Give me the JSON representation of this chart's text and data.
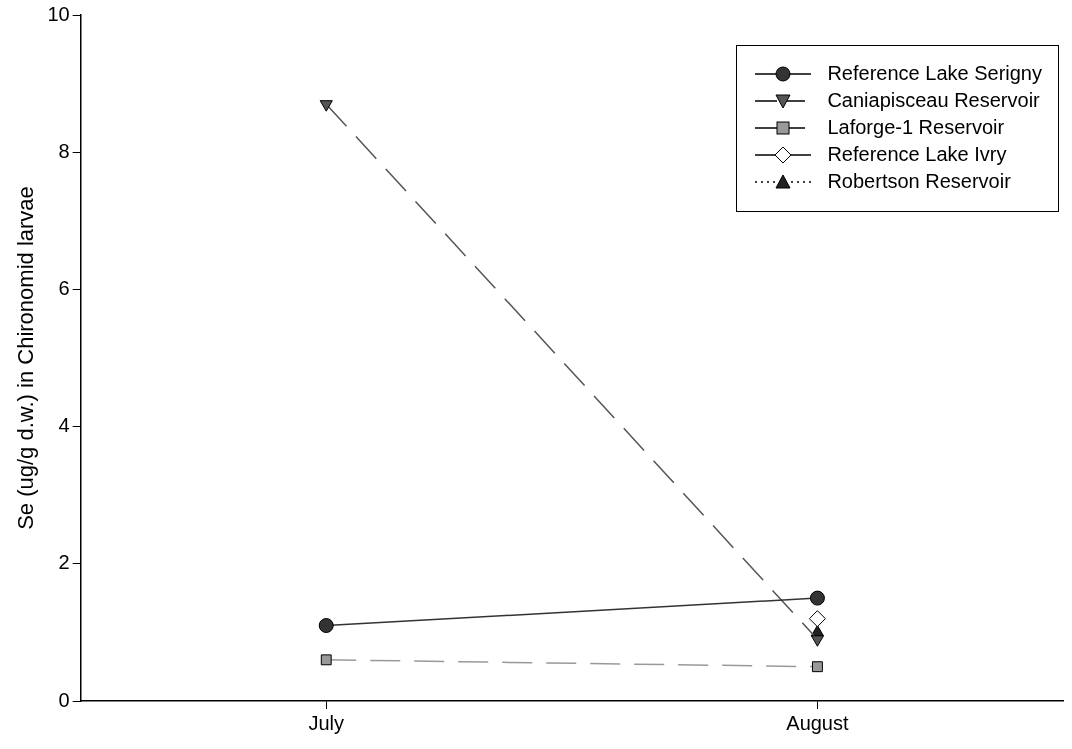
{
  "chart_data": {
    "type": "line",
    "ylabel": "Se (ug/g d.w.) in Chironomid larvae",
    "categories": [
      "July",
      "August"
    ],
    "ylim": [
      0,
      10
    ],
    "yticks": [
      0,
      2,
      4,
      6,
      8,
      10
    ],
    "grid": false,
    "legend": "top right",
    "series": [
      {
        "name": "Reference Lake Serigny",
        "color": "#333333",
        "marker": "circle",
        "line_style": "solid",
        "values": [
          1.1,
          1.5
        ]
      },
      {
        "name": "Caniapisceau Reservoir",
        "color": "#555555",
        "marker": "triangle_down",
        "line_style": "dashed",
        "values": [
          8.7,
          0.9
        ]
      },
      {
        "name": "Laforge-1 Reservoir",
        "color": "#999999",
        "marker": "square",
        "line_style": "dashed",
        "values": [
          0.6,
          0.5
        ]
      },
      {
        "name": "Reference Lake Ivry",
        "color": "#ffffff",
        "marker": "diamond",
        "line_style": "solid",
        "values": [
          null,
          1.2
        ]
      },
      {
        "name": "Robertson Reservoir",
        "color": "#222222",
        "marker": "triangle",
        "line_style": "dotted",
        "values": [
          null,
          1.0
        ]
      }
    ]
  }
}
